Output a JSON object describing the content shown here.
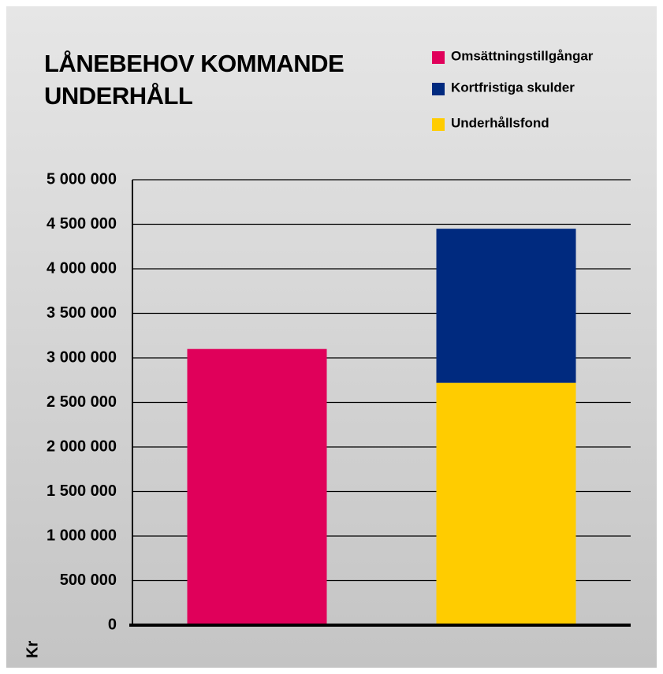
{
  "chart_data": {
    "type": "stacked_bar",
    "title": [
      "LÅNEBEHOV KOMMANDE",
      "UNDERHÅLL"
    ],
    "y_label": "Kr",
    "categories": [
      null,
      null
    ],
    "series": [
      {
        "name": "Omsättningstillgångar",
        "color": "#e0005a",
        "values": [
          3100000,
          null
        ]
      },
      {
        "name": "Kortfristiga skulder",
        "color": "#002a7f",
        "values": [
          null,
          1730000
        ]
      },
      {
        "name": "Underhållsfond",
        "color": "#ffcc00",
        "values": [
          null,
          2720000
        ]
      }
    ],
    "ylim": [
      0,
      5000000
    ],
    "yticks": [
      0,
      {
        "value": 500000,
        "label": "500 000"
      },
      {
        "value": 1000000,
        "label": "1 000 000"
      },
      {
        "value": 1500000,
        "label": "1 500 000"
      },
      {
        "value": 2000000,
        "label": "2 000 000"
      },
      {
        "value": 2500000,
        "label": "2 500 000"
      },
      {
        "value": 3000000,
        "label": "3 000 000"
      },
      {
        "value": 3500000,
        "label": "3 500 000"
      },
      {
        "value": 4000000,
        "label": "4 000 000"
      },
      {
        "value": 4500000,
        "label": "4 500 000"
      },
      {
        "value": 5000000,
        "label": "5 000 000"
      }
    ],
    "grid": true
  }
}
